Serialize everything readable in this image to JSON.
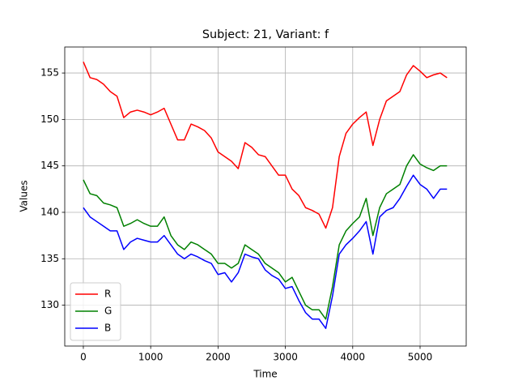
{
  "chart_data": {
    "type": "line",
    "title": "Subject: 21, Variant: f",
    "x_label": "Time",
    "y_label": "Values",
    "x": [
      0,
      100,
      200,
      300,
      400,
      500,
      600,
      700,
      800,
      900,
      1000,
      1100,
      1200,
      1300,
      1400,
      1500,
      1600,
      1700,
      1800,
      1900,
      2000,
      2100,
      2200,
      2300,
      2400,
      2500,
      2600,
      2700,
      2800,
      2900,
      3000,
      3100,
      3200,
      3300,
      3400,
      3500,
      3600,
      3700,
      3800,
      3900,
      4000,
      4100,
      4200,
      4300,
      4400,
      4500,
      4600,
      4700,
      4800,
      4900,
      5000,
      5100,
      5200,
      5300,
      5400
    ],
    "series": [
      {
        "name": "R",
        "color": "#ff0000",
        "values": [
          156.2,
          154.5,
          154.3,
          153.8,
          153,
          152.5,
          150.2,
          150.8,
          151,
          150.8,
          150.5,
          150.8,
          151.2,
          149.5,
          147.8,
          147.8,
          149.5,
          149.2,
          148.8,
          148,
          146.5,
          146,
          145.5,
          144.7,
          147.5,
          147,
          146.2,
          146,
          145,
          144,
          144,
          142.5,
          141.8,
          140.5,
          140.2,
          139.8,
          138.3,
          140.5,
          146,
          148.5,
          149.5,
          150.2,
          150.8,
          147.2,
          150,
          152,
          152.5,
          153,
          154.8,
          155.8,
          155.2,
          154.5,
          154.8,
          155,
          154.5
        ]
      },
      {
        "name": "G",
        "color": "#008000",
        "values": [
          143.5,
          142,
          141.8,
          141,
          140.8,
          140.5,
          138.5,
          138.8,
          139.2,
          138.8,
          138.5,
          138.5,
          139.5,
          137.5,
          136.5,
          136,
          136.8,
          136.5,
          136,
          135.5,
          134.5,
          134.5,
          134,
          134.5,
          136.5,
          136,
          135.5,
          134.5,
          134,
          133.5,
          132.5,
          133,
          131.5,
          130,
          129.5,
          129.5,
          128.5,
          132,
          136.5,
          138,
          138.8,
          139.5,
          141.5,
          137.5,
          140.5,
          142,
          142.5,
          143,
          145,
          146.2,
          145.2,
          144.8,
          144.5,
          145,
          145
        ]
      },
      {
        "name": "B",
        "color": "#0000ff",
        "values": [
          140.5,
          139.5,
          139,
          138.5,
          138,
          138,
          136,
          136.8,
          137.2,
          137,
          136.8,
          136.8,
          137.5,
          136.5,
          135.5,
          135,
          135.5,
          135.2,
          134.8,
          134.5,
          133.3,
          133.5,
          132.5,
          133.5,
          135.5,
          135.2,
          135,
          133.8,
          133.2,
          132.8,
          131.8,
          132,
          130.5,
          129.2,
          128.5,
          128.5,
          127.5,
          131,
          135.5,
          136.5,
          137.2,
          138,
          139,
          135.5,
          139.5,
          140.2,
          140.5,
          141.5,
          142.8,
          144,
          143,
          142.5,
          141.5,
          142.5,
          142.5
        ]
      }
    ],
    "xlim": [
      -276,
      5685
    ],
    "ylim": [
      125.6,
      157.8
    ],
    "xticks": [
      0,
      1000,
      2000,
      3000,
      4000,
      5000
    ],
    "yticks": [
      130,
      135,
      140,
      145,
      150,
      155
    ],
    "grid": true,
    "legend": "lower left"
  }
}
